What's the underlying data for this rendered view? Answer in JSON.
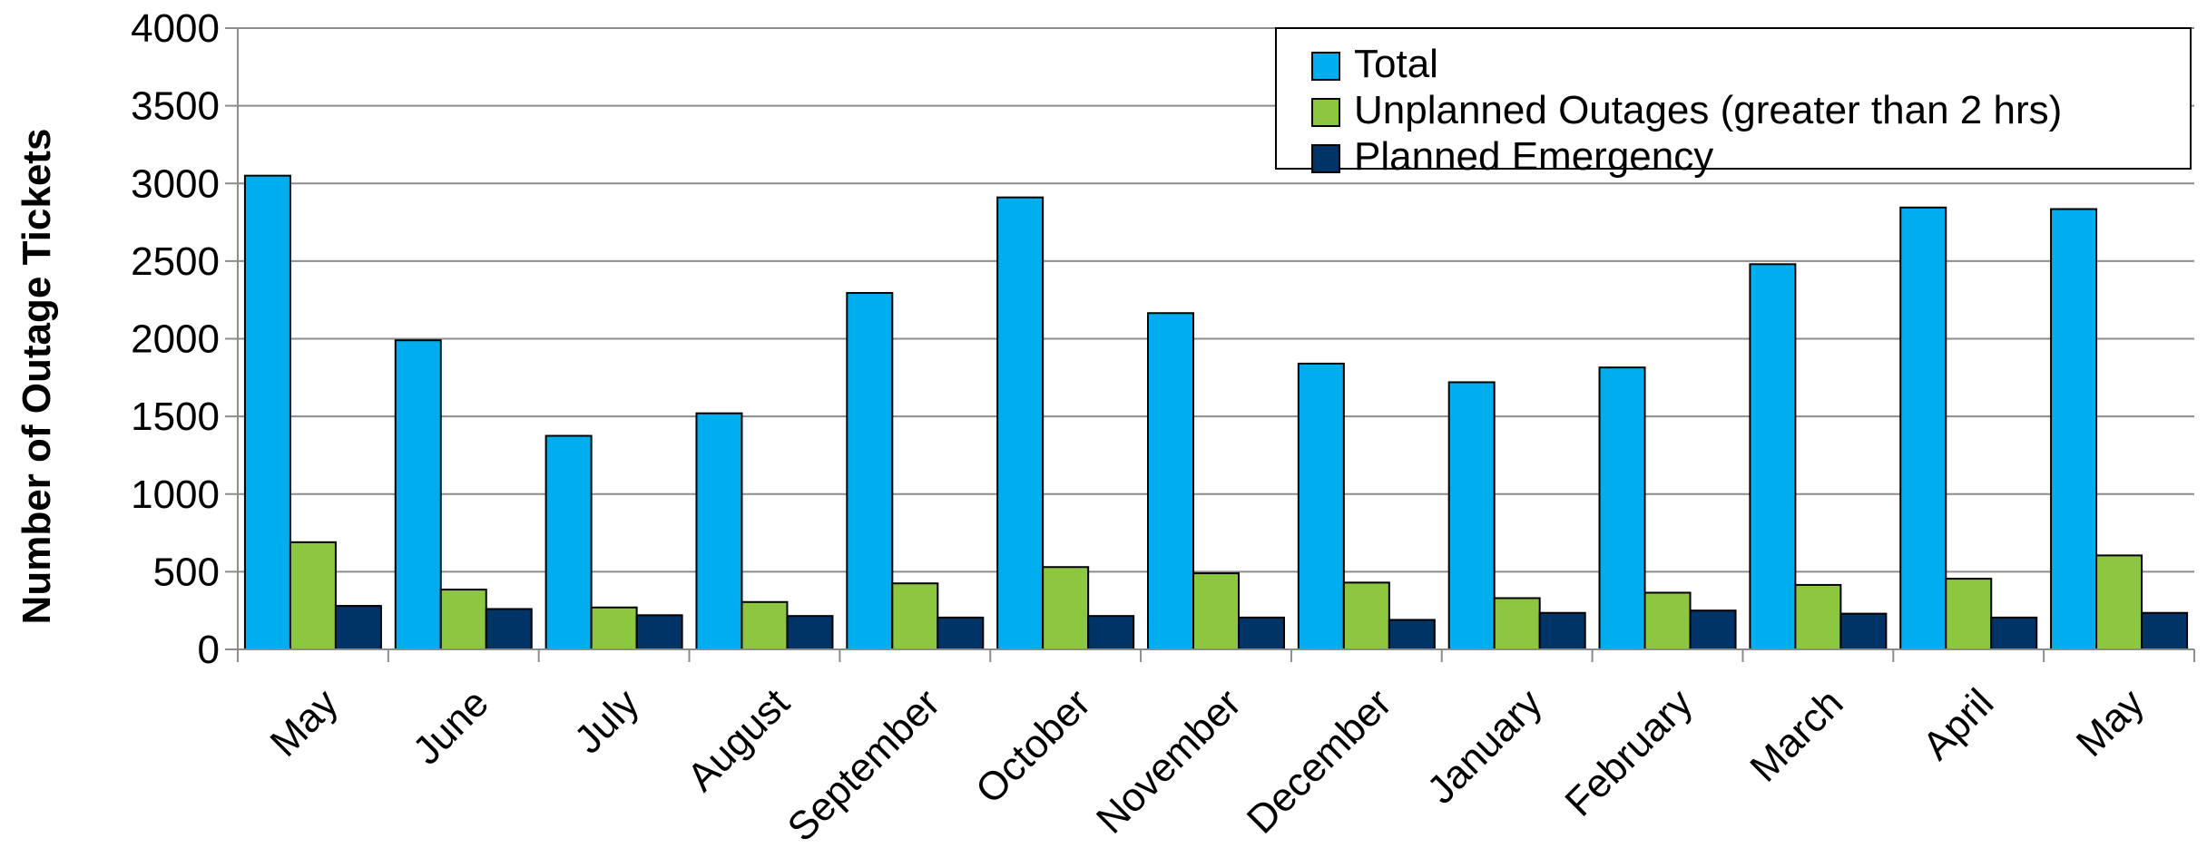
{
  "chart_data": {
    "type": "bar",
    "title": "",
    "xlabel": "",
    "ylabel": "Number of Outage Tickets",
    "ylim": [
      0,
      4000
    ],
    "yticks": [
      0,
      500,
      1000,
      1500,
      2000,
      2500,
      3000,
      3500,
      4000
    ],
    "grid": true,
    "legend_position": "top-right",
    "categories": [
      "May",
      "June",
      "July",
      "August",
      "September",
      "October",
      "November",
      "December",
      "January",
      "February",
      "March",
      "April",
      "May"
    ],
    "series": [
      {
        "name": "Total",
        "color": "#00aeef",
        "values": [
          3050,
          1990,
          1375,
          1520,
          2295,
          2910,
          2165,
          1840,
          1720,
          1815,
          2480,
          2845,
          2835
        ]
      },
      {
        "name": "Unplanned Outages (greater than 2 hrs)",
        "color": "#8dc63f",
        "values": [
          690,
          385,
          270,
          305,
          425,
          530,
          490,
          430,
          330,
          365,
          415,
          455,
          605
        ]
      },
      {
        "name": "Planned Emergency",
        "color": "#003366",
        "values": [
          280,
          260,
          220,
          215,
          205,
          215,
          205,
          190,
          235,
          250,
          230,
          205,
          235
        ]
      }
    ]
  }
}
